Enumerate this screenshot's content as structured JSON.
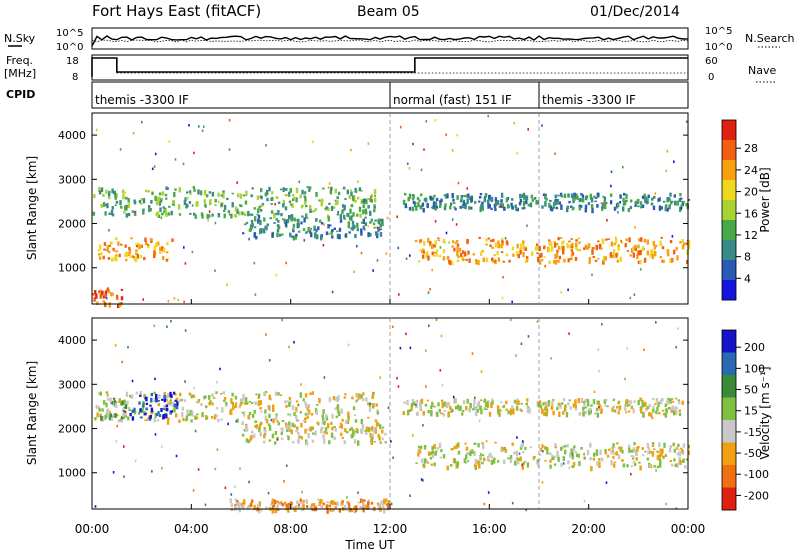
{
  "header": {
    "station": "Fort Hays East (fitACF)",
    "beam": "Beam 05",
    "date": "01/Dec/2014"
  },
  "summary": {
    "nsky_label": "N.Sky",
    "nsky_ticks": [
      "10^5",
      "10^0"
    ],
    "nsearch_label": "N.Search",
    "nsearch_ticks": [
      "10^5",
      "10^0"
    ],
    "freq_label_1": "Freq.",
    "freq_label_2": "[MHz]",
    "freq_ticks": [
      "18",
      "8"
    ],
    "nave_label": "Nave",
    "nave_ticks": [
      "60",
      "0"
    ],
    "cpid_label": "CPID",
    "cpid_segments": [
      {
        "label": "themis -3300 IF",
        "start": 0,
        "end": 12.0
      },
      {
        "label": "normal (fast) 151 IF",
        "start": 12.0,
        "end": 18.0
      },
      {
        "label": "themis -3300 IF",
        "start": 18.0,
        "end": 24.0
      }
    ]
  },
  "chart_data": [
    {
      "type": "heatmap",
      "name": "power",
      "ylabel": "Slant Range [km]",
      "xlabel": "",
      "ylim": [
        180,
        4500
      ],
      "xlim": [
        0,
        24
      ],
      "yticks": [
        "1000",
        "2000",
        "3000",
        "4000"
      ],
      "ytick_values": [
        1000,
        2000,
        3000,
        4000
      ],
      "colorbar_label": "Power [dB]",
      "colorbar_ticks": [
        "4",
        "8",
        "12",
        "16",
        "20",
        "24",
        "28"
      ],
      "colorbar_colors": [
        "#1414dc",
        "#2a5ab4",
        "#3a8a8a",
        "#48a848",
        "#a8d430",
        "#f0d820",
        "#f8a010",
        "#f06010",
        "#e02010"
      ],
      "echo_bands": [
        {
          "t0": 0.0,
          "t1": 11.5,
          "r0": 2200,
          "r1": 2850,
          "level": 3
        },
        {
          "t0": 12.5,
          "t1": 24.0,
          "r0": 2350,
          "r1": 2700,
          "level": 2
        },
        {
          "t0": 13.0,
          "t1": 24.0,
          "r0": 1150,
          "r1": 1700,
          "level": 6
        },
        {
          "t0": 0.2,
          "t1": 3.2,
          "r0": 1200,
          "r1": 1700,
          "level": 6
        },
        {
          "t0": 0.0,
          "t1": 1.2,
          "r0": 180,
          "r1": 600,
          "level": 7
        },
        {
          "t0": 6.0,
          "t1": 11.8,
          "r0": 1700,
          "r1": 2200,
          "level": 2
        }
      ]
    },
    {
      "type": "heatmap",
      "name": "velocity",
      "ylabel": "Slant Range [km]",
      "xlabel": "Time UT",
      "ylim": [
        180,
        4500
      ],
      "xlim": [
        0,
        24
      ],
      "yticks": [
        "1000",
        "2000",
        "3000",
        "4000"
      ],
      "ytick_values": [
        1000,
        2000,
        3000,
        4000
      ],
      "xticks": [
        "00:00",
        "04:00",
        "08:00",
        "12:00",
        "16:00",
        "20:00",
        "00:00"
      ],
      "xtick_values": [
        0,
        4,
        8,
        12,
        16,
        20,
        24
      ],
      "colorbar_label": "Velocity [m s⁻¹]",
      "colorbar_ticks": [
        "200",
        "100",
        "50",
        "15",
        "-15",
        "-50",
        "-100",
        "-200"
      ],
      "colorbar_colors": [
        "#1414c8",
        "#2a6ab4",
        "#3a8a3a",
        "#80c040",
        "#c8c8c8",
        "#f0a010",
        "#f07010",
        "#e02010"
      ],
      "echo_bands": [
        {
          "t0": 0.0,
          "t1": 11.5,
          "r0": 2200,
          "r1": 2850,
          "level": 4
        },
        {
          "t0": 12.5,
          "t1": 24.0,
          "r0": 2350,
          "r1": 2700,
          "level": 4
        },
        {
          "t0": 13.0,
          "t1": 24.0,
          "r0": 1150,
          "r1": 1700,
          "level": 4
        },
        {
          "t0": 1.5,
          "t1": 3.4,
          "r0": 2250,
          "r1": 2850,
          "level": 0
        },
        {
          "t0": 0.2,
          "t1": 1.5,
          "r0": 2200,
          "r1": 2700,
          "level": 3
        },
        {
          "t0": 6.0,
          "t1": 11.8,
          "r0": 1700,
          "r1": 2200,
          "level": 4
        },
        {
          "t0": 5.5,
          "t1": 12.0,
          "r0": 180,
          "r1": 420,
          "level": 5
        }
      ]
    }
  ]
}
